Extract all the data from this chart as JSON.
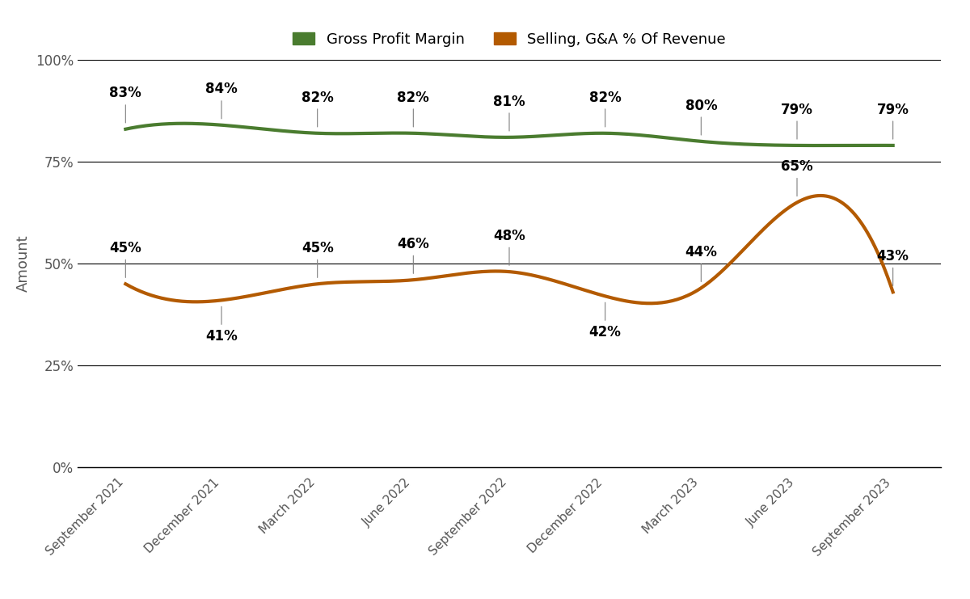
{
  "categories": [
    "September 2021",
    "December 2021",
    "March 2022",
    "June 2022",
    "September 2022",
    "December 2022",
    "March 2023",
    "June 2023",
    "September 2023"
  ],
  "gross_profit_margin": [
    83,
    84,
    82,
    82,
    81,
    82,
    80,
    79,
    79
  ],
  "selling_ga": [
    45,
    41,
    45,
    46,
    48,
    42,
    44,
    65,
    43
  ],
  "gross_profit_color": "#4a7c2f",
  "selling_ga_color": "#b35a00",
  "gross_profit_label": "Gross Profit Margin",
  "selling_ga_label": "Selling, G&A % Of Revenue",
  "ylabel": "Amount",
  "ylim": [
    0,
    100
  ],
  "yticks": [
    0,
    25,
    50,
    75,
    100
  ],
  "ytick_labels": [
    "0%",
    "25%",
    "50%",
    "75%",
    "100%"
  ],
  "line_width": 3.0,
  "background_color": "#ffffff",
  "grid_color": "#000000",
  "annotation_fontsize": 12,
  "ytick_fontsize": 12,
  "xtick_fontsize": 11,
  "ylabel_fontsize": 13,
  "legend_fontsize": 13
}
